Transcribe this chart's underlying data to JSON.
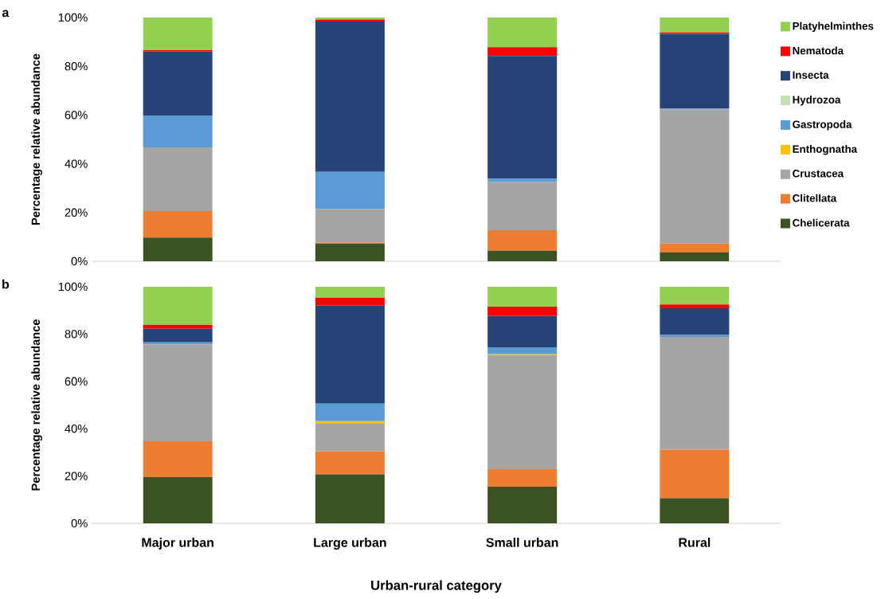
{
  "chart_data": [
    {
      "type": "bar",
      "stacked": true,
      "title": "a",
      "ylabel": "Percentage relative abundance",
      "categories": [
        null,
        null,
        null,
        null
      ],
      "ylim": [
        0,
        100
      ],
      "yticks": [
        {
          "value": 0,
          "label": "0%"
        },
        {
          "value": 20,
          "label": "20%"
        },
        {
          "value": 40,
          "label": "40%"
        },
        {
          "value": 60,
          "label": "60%"
        },
        {
          "value": 80,
          "label": "80%"
        },
        {
          "value": 100,
          "label": "100%"
        }
      ],
      "tick_labels": "y",
      "legend": "right",
      "series": [
        {
          "name": "Chelicerata",
          "color": "#3b5323",
          "values": [
            9.7,
            7.3,
            4.3,
            3.6
          ]
        },
        {
          "name": "Clitellata",
          "color": "#ed7d31",
          "values": [
            10.9,
            0.4,
            8.4,
            3.7
          ]
        },
        {
          "name": "Crustacea",
          "color": "#a5a5a5",
          "values": [
            26.1,
            13.7,
            19.9,
            55.0
          ]
        },
        {
          "name": "Enthognatha",
          "color": "#ffc000",
          "values": [
            0,
            0,
            0,
            0
          ]
        },
        {
          "name": "Gastropoda",
          "color": "#5b9bd5",
          "values": [
            13.1,
            15.3,
            1.3,
            0.4
          ]
        },
        {
          "name": "Hydrozoa",
          "color": "#c5e0b4",
          "values": [
            0,
            0,
            0,
            0
          ]
        },
        {
          "name": "Insecta",
          "color": "#264478",
          "values": [
            26.3,
            61.7,
            50.3,
            30.6
          ]
        },
        {
          "name": "Nematoda",
          "color": "#ff0000",
          "values": [
            0.5,
            0.8,
            3.6,
            0.6
          ]
        },
        {
          "name": "Platyhelminthes",
          "color": "#92d050",
          "values": [
            13.4,
            0.8,
            12.2,
            6.1
          ]
        }
      ]
    },
    {
      "type": "bar",
      "stacked": true,
      "title": "b",
      "ylabel": "Percentage relative abundance",
      "xlabel": "Urban-rural category",
      "categories": [
        "Major urban",
        "Large urban",
        "Small urban",
        "Rural"
      ],
      "ylim": [
        0,
        100
      ],
      "yticks": [
        {
          "value": 0,
          "label": "0%"
        },
        {
          "value": 20,
          "label": "20%"
        },
        {
          "value": 40,
          "label": "40%"
        },
        {
          "value": 60,
          "label": "60%"
        },
        {
          "value": 80,
          "label": "80%"
        },
        {
          "value": 100,
          "label": "100%"
        }
      ],
      "series": [
        {
          "color": "#3b5323",
          "values": [
            19.5,
            20.7,
            15.5,
            10.6
          ]
        },
        {
          "color": "#ed7d31",
          "values": [
            15.2,
            9.8,
            7.4,
            20.5
          ]
        },
        {
          "color": "#a5a5a5",
          "values": [
            40.9,
            11.8,
            48.2,
            47.7
          ]
        },
        {
          "color": "#ffc000",
          "values": [
            0,
            0.9,
            0.4,
            0
          ]
        },
        {
          "color": "#5b9bd5",
          "values": [
            0.9,
            7.4,
            2.9,
            0.8
          ]
        },
        {
          "color": "#c5e0b4",
          "values": [
            0,
            0,
            0,
            0
          ]
        },
        {
          "color": "#264478",
          "values": [
            5.7,
            41.4,
            13.2,
            11.3
          ]
        },
        {
          "color": "#ff0000",
          "values": [
            1.7,
            3.4,
            4.0,
            1.6
          ]
        },
        {
          "color": "#92d050",
          "values": [
            16.1,
            4.6,
            8.4,
            7.5
          ]
        }
      ]
    }
  ]
}
